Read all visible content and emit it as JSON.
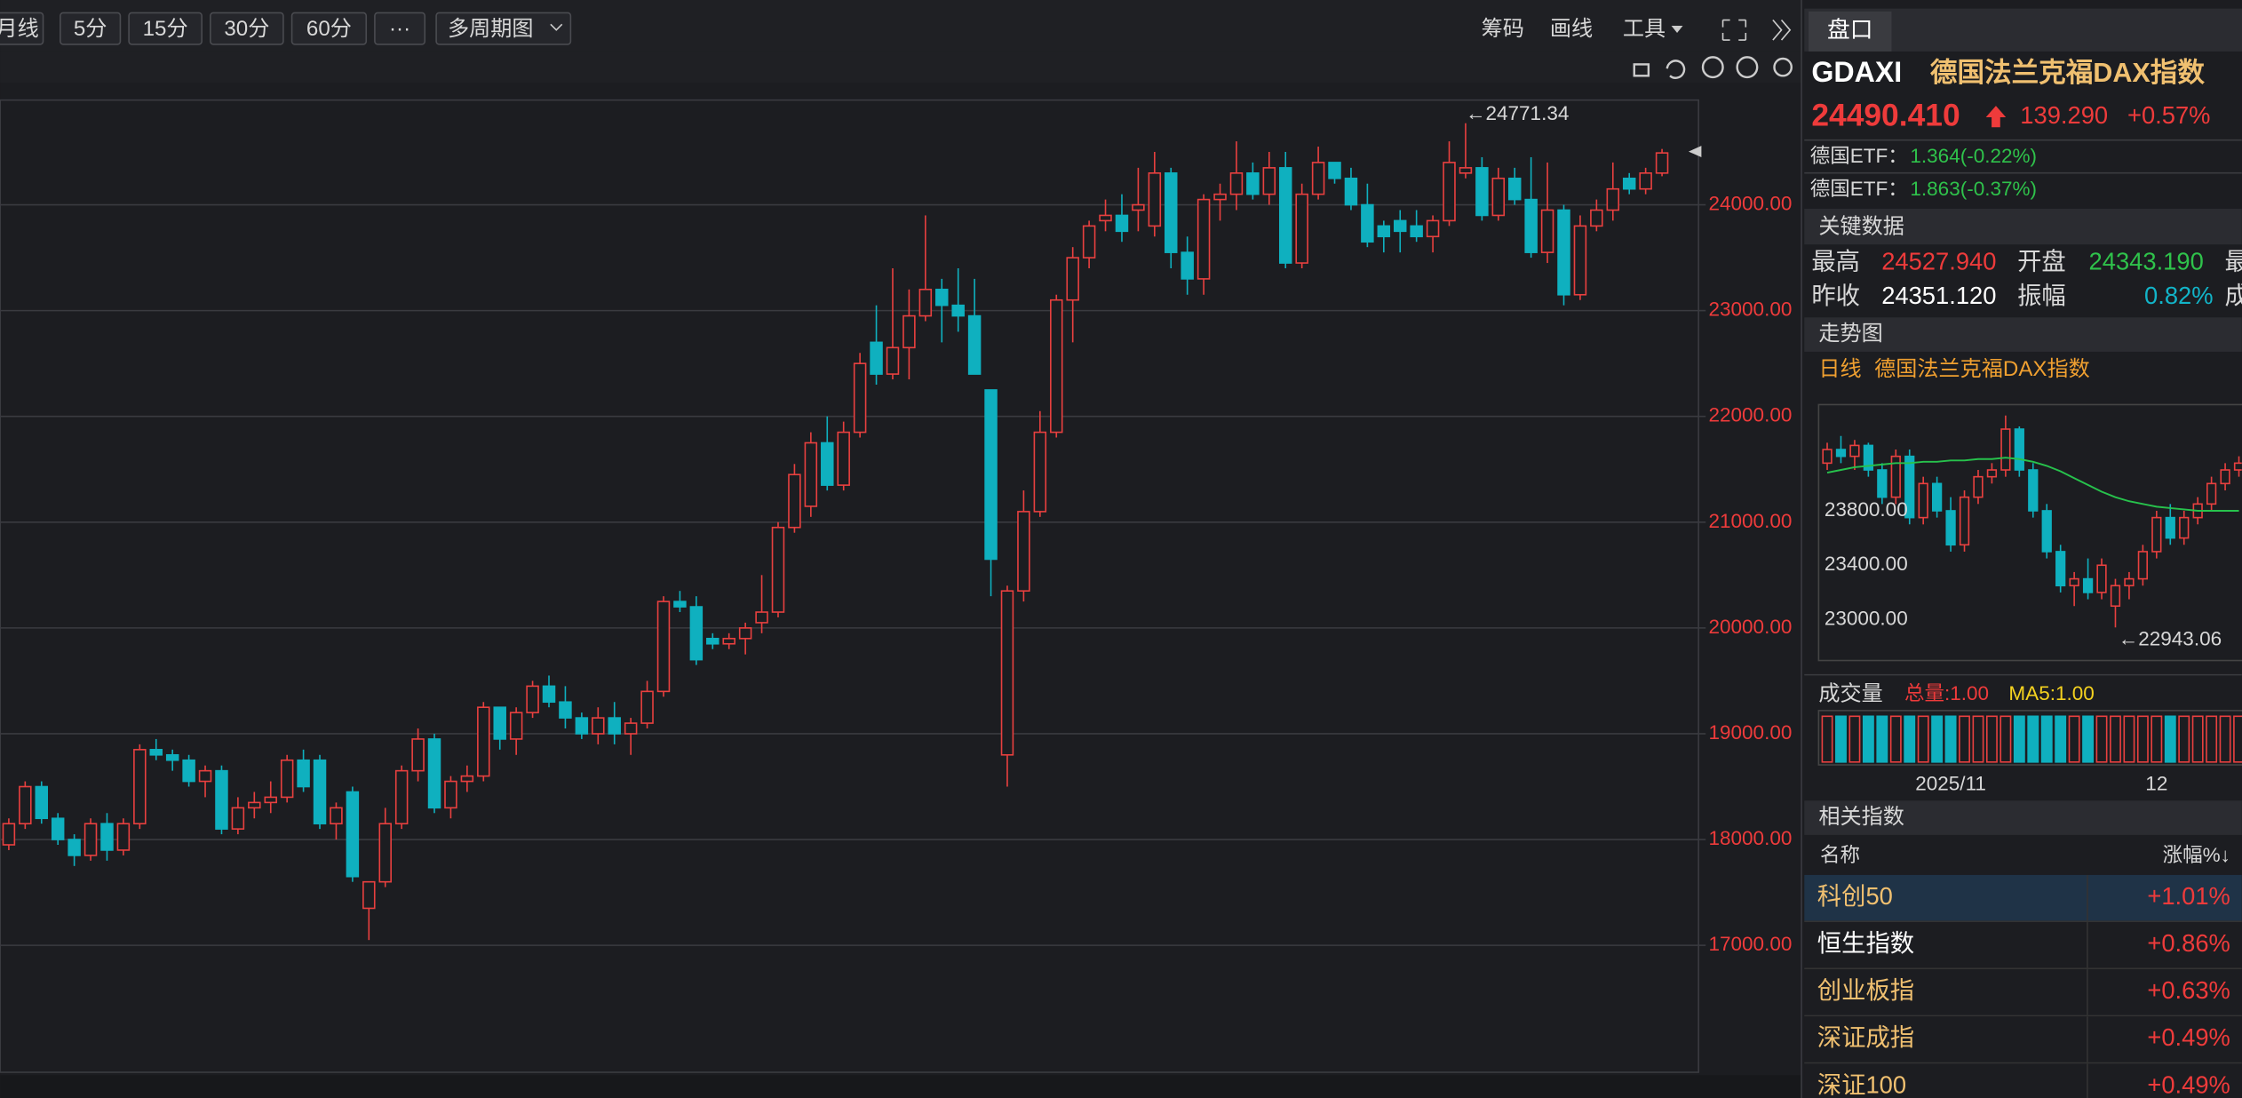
{
  "toolbar": {
    "periods": [
      "月线",
      "5分",
      "15分",
      "30分",
      "60分",
      "···",
      "多周期图"
    ],
    "tools": [
      "筹码",
      "画线",
      "工具"
    ]
  },
  "chart_data": [
    {
      "type": "candlestick",
      "colors": {
        "up": "#e8403f",
        "down": "#0fb0bf"
      },
      "ylim": [
        15800,
        24990
      ],
      "yticks": [
        {
          "value": 17000,
          "label": "17000.00"
        },
        {
          "value": 18000,
          "label": "18000.00"
        },
        {
          "value": 19000,
          "label": "19000.00"
        },
        {
          "value": 20000,
          "label": "20000.00"
        },
        {
          "value": 21000,
          "label": "21000.00"
        },
        {
          "value": 22000,
          "label": "22000.00"
        },
        {
          "value": 23000,
          "label": "23000.00"
        },
        {
          "value": 24000,
          "label": "24000.00"
        }
      ],
      "grid": true,
      "max_label": "←24771.34",
      "open": [
        17950,
        18150,
        18500,
        18200,
        18000,
        17850,
        18150,
        17900,
        18150,
        18850,
        18800,
        18750,
        18550,
        18650,
        18100,
        18300,
        18350,
        18400,
        18750,
        18750,
        18150,
        18450,
        17350,
        17600,
        18150,
        18650,
        18950,
        18300,
        18550,
        18600,
        19250,
        18950,
        19200,
        19450,
        19300,
        19150,
        19000,
        19150,
        19000,
        19100,
        19400,
        20250,
        20200,
        19900,
        19850,
        19900,
        20050,
        20150,
        20950,
        21150,
        21750,
        21350,
        21850,
        22700,
        22400,
        22650,
        22950,
        23200,
        23050,
        22950,
        22250,
        18800,
        20350,
        21100,
        21850,
        23100,
        23500,
        23850,
        23900,
        23950,
        23800,
        24300,
        23550,
        23300,
        24050,
        24100,
        24300,
        24100,
        24350,
        23450,
        24100,
        24400,
        24250,
        24000,
        23800,
        23850,
        23800,
        23700,
        23850,
        24300,
        24350,
        23900,
        24250,
        24050,
        23550,
        23950,
        23150,
        23800,
        23950,
        24250,
        24150,
        24300
      ],
      "high": [
        18200,
        18550,
        18550,
        18250,
        18050,
        18200,
        18250,
        18200,
        18900,
        18950,
        18850,
        18800,
        18700,
        18700,
        18400,
        18450,
        18550,
        18800,
        18850,
        18800,
        18350,
        18500,
        17600,
        18300,
        18700,
        19050,
        19000,
        18600,
        18700,
        19300,
        19250,
        19250,
        19500,
        19550,
        19450,
        19200,
        19250,
        19300,
        19150,
        19500,
        20300,
        20350,
        20300,
        19950,
        19950,
        20050,
        20500,
        21000,
        21550,
        21850,
        22000,
        21950,
        22600,
        23050,
        23400,
        23200,
        23900,
        23300,
        23400,
        23300,
        22250,
        20400,
        21300,
        22050,
        23150,
        23600,
        23850,
        24050,
        24100,
        24350,
        24500,
        24350,
        23700,
        24100,
        24200,
        24600,
        24400,
        24500,
        24500,
        24200,
        24550,
        24400,
        24350,
        24200,
        23850,
        23950,
        23950,
        23900,
        24600,
        24771.34,
        24450,
        24350,
        24350,
        24450,
        24400,
        24000,
        23900,
        24050,
        24400,
        24300,
        24350,
        24527.94
      ],
      "low": [
        17900,
        18100,
        18150,
        17950,
        17750,
        17800,
        17800,
        17850,
        18100,
        18750,
        18650,
        18500,
        18400,
        18050,
        18050,
        18200,
        18250,
        18350,
        18450,
        18100,
        18000,
        17600,
        17050,
        17550,
        18100,
        18550,
        18250,
        18200,
        18450,
        18550,
        18850,
        18800,
        19150,
        19250,
        19050,
        18950,
        18900,
        18900,
        18800,
        19050,
        19350,
        20150,
        19650,
        19800,
        19800,
        19750,
        19950,
        20100,
        20900,
        21050,
        21300,
        21300,
        21800,
        22300,
        22350,
        22350,
        22900,
        22700,
        22800,
        22400,
        20300,
        18500,
        20250,
        21050,
        21800,
        22700,
        23400,
        23750,
        23650,
        23750,
        23700,
        23400,
        23150,
        23150,
        23850,
        23950,
        24050,
        24000,
        23400,
        23400,
        24050,
        24200,
        23950,
        23600,
        23550,
        23550,
        23650,
        23550,
        23800,
        24250,
        23850,
        23850,
        24000,
        23500,
        23450,
        23050,
        23100,
        23750,
        23850,
        24100,
        24100,
        24270
      ],
      "close": [
        18150,
        18500,
        18200,
        18000,
        17850,
        18150,
        17900,
        18150,
        18850,
        18800,
        18750,
        18550,
        18650,
        18100,
        18300,
        18350,
        18400,
        18750,
        18500,
        18150,
        18300,
        17650,
        17600,
        18150,
        18650,
        18950,
        18300,
        18550,
        18600,
        19250,
        18950,
        19200,
        19450,
        19300,
        19150,
        19000,
        19150,
        19000,
        19100,
        19400,
        20250,
        20200,
        19700,
        19850,
        19900,
        20000,
        20150,
        20950,
        21450,
        21750,
        21350,
        21850,
        22500,
        22400,
        22650,
        22950,
        23200,
        23050,
        22950,
        22400,
        20650,
        20350,
        21100,
        21850,
        23100,
        23500,
        23800,
        23900,
        23750,
        24000,
        24300,
        23550,
        23300,
        24050,
        24100,
        24300,
        24100,
        24350,
        23450,
        24100,
        24400,
        24250,
        24000,
        23650,
        23700,
        23750,
        23700,
        23850,
        24400,
        24350,
        23900,
        24250,
        24050,
        23550,
        23950,
        23150,
        23800,
        23950,
        24150,
        24150,
        24300,
        24490.41
      ]
    },
    {
      "type": "candlestick",
      "period": "日线",
      "title": "德国法兰克福DAX指数",
      "colors": {
        "up": "#e8403f",
        "down": "#0fb0bf"
      },
      "ylim": [
        22700,
        24580
      ],
      "yticks": [
        {
          "value": 23000,
          "label": "23000.00"
        },
        {
          "value": 23400,
          "label": "23400.00"
        },
        {
          "value": 23800,
          "label": "23800.00"
        }
      ],
      "min_label": "←22943.06",
      "categories": [
        null,
        null,
        null,
        null,
        null,
        null,
        null,
        null,
        null,
        "2025/11",
        null,
        null,
        null,
        null,
        null,
        null,
        null,
        null,
        null,
        null,
        null,
        null,
        null,
        null,
        "12",
        null,
        null,
        null,
        null,
        null,
        null
      ],
      "open": [
        24150,
        24250,
        24200,
        24280,
        24100,
        23900,
        24200,
        23750,
        24000,
        23800,
        23550,
        23900,
        24050,
        24100,
        24400,
        24100,
        23800,
        23500,
        23250,
        23300,
        23200,
        23100,
        23250,
        23300,
        23500,
        23750,
        23600,
        23750,
        23850,
        24000,
        24100
      ],
      "high": [
        24300,
        24350,
        24320,
        24300,
        24150,
        24250,
        24250,
        24050,
        24050,
        23900,
        23950,
        24100,
        24150,
        24500,
        24420,
        24150,
        23850,
        23550,
        23350,
        23450,
        23450,
        23300,
        23350,
        23550,
        23800,
        23850,
        23800,
        23900,
        24050,
        24150,
        24200
      ],
      "low": [
        24100,
        24150,
        24100,
        24050,
        23850,
        23850,
        23700,
        23700,
        23750,
        23500,
        23500,
        23850,
        24000,
        24050,
        24050,
        23750,
        23450,
        23200,
        23100,
        23150,
        23150,
        22943.06,
        23150,
        23250,
        23450,
        23550,
        23550,
        23700,
        23800,
        23950,
        24050
      ],
      "close": [
        24250,
        24200,
        24280,
        24100,
        23900,
        24200,
        23750,
        24000,
        23800,
        23550,
        23900,
        24050,
        24100,
        24400,
        24100,
        23800,
        23500,
        23250,
        23300,
        23200,
        23400,
        23250,
        23300,
        23500,
        23750,
        23600,
        23750,
        23850,
        24000,
        24100,
        24150
      ],
      "ma": {
        "color": "#27c24c",
        "values": [
          24080,
          24100,
          24120,
          24130,
          24140,
          24150,
          24150,
          24160,
          24160,
          24170,
          24170,
          24180,
          24180,
          24190,
          24180,
          24160,
          24130,
          24090,
          24040,
          23990,
          23940,
          23900,
          23870,
          23850,
          23830,
          23820,
          23810,
          23800,
          23800,
          23800,
          23800
        ]
      },
      "volume": {
        "title": "成交量",
        "total": "总量:1.00",
        "ma5": "MA5:1.00",
        "ylim": [
          0,
          1
        ],
        "values": [
          1,
          1,
          1,
          1,
          1,
          1,
          1,
          1,
          1,
          1,
          1,
          1,
          1,
          1,
          1,
          1,
          1,
          1,
          1,
          1,
          1,
          1,
          1,
          1,
          1,
          1,
          1,
          1,
          1,
          1,
          1
        ]
      }
    }
  ],
  "panel": {
    "tab": "盘口",
    "symbol": "GDAXI",
    "name": "德国法兰克福DAX指数",
    "price": "24490.410",
    "change": "139.290",
    "change_pct": "+0.57%",
    "etf": [
      {
        "label": "德国ETF：",
        "value": "1.364(-0.22%)"
      },
      {
        "label": "德国ETF：",
        "value": "1.863(-0.37%)"
      }
    ],
    "key_data": {
      "title": "关键数据",
      "rows": [
        [
          "最高",
          "24527.940",
          "开盘",
          "24343.190",
          "最"
        ],
        [
          "昨收",
          "24351.120",
          "振幅",
          "0.82%",
          "成"
        ]
      ]
    },
    "trend_title": "走势图",
    "related": {
      "title": "相关指数",
      "header": [
        "名称",
        "涨幅%↓"
      ],
      "rows": [
        [
          "科创50",
          "+1.01%"
        ],
        [
          "恒生指数",
          "+0.86%"
        ],
        [
          "创业板指",
          "+0.63%"
        ],
        [
          "深证成指",
          "+0.49%"
        ],
        [
          "深证100",
          "+0.49%"
        ]
      ]
    }
  }
}
